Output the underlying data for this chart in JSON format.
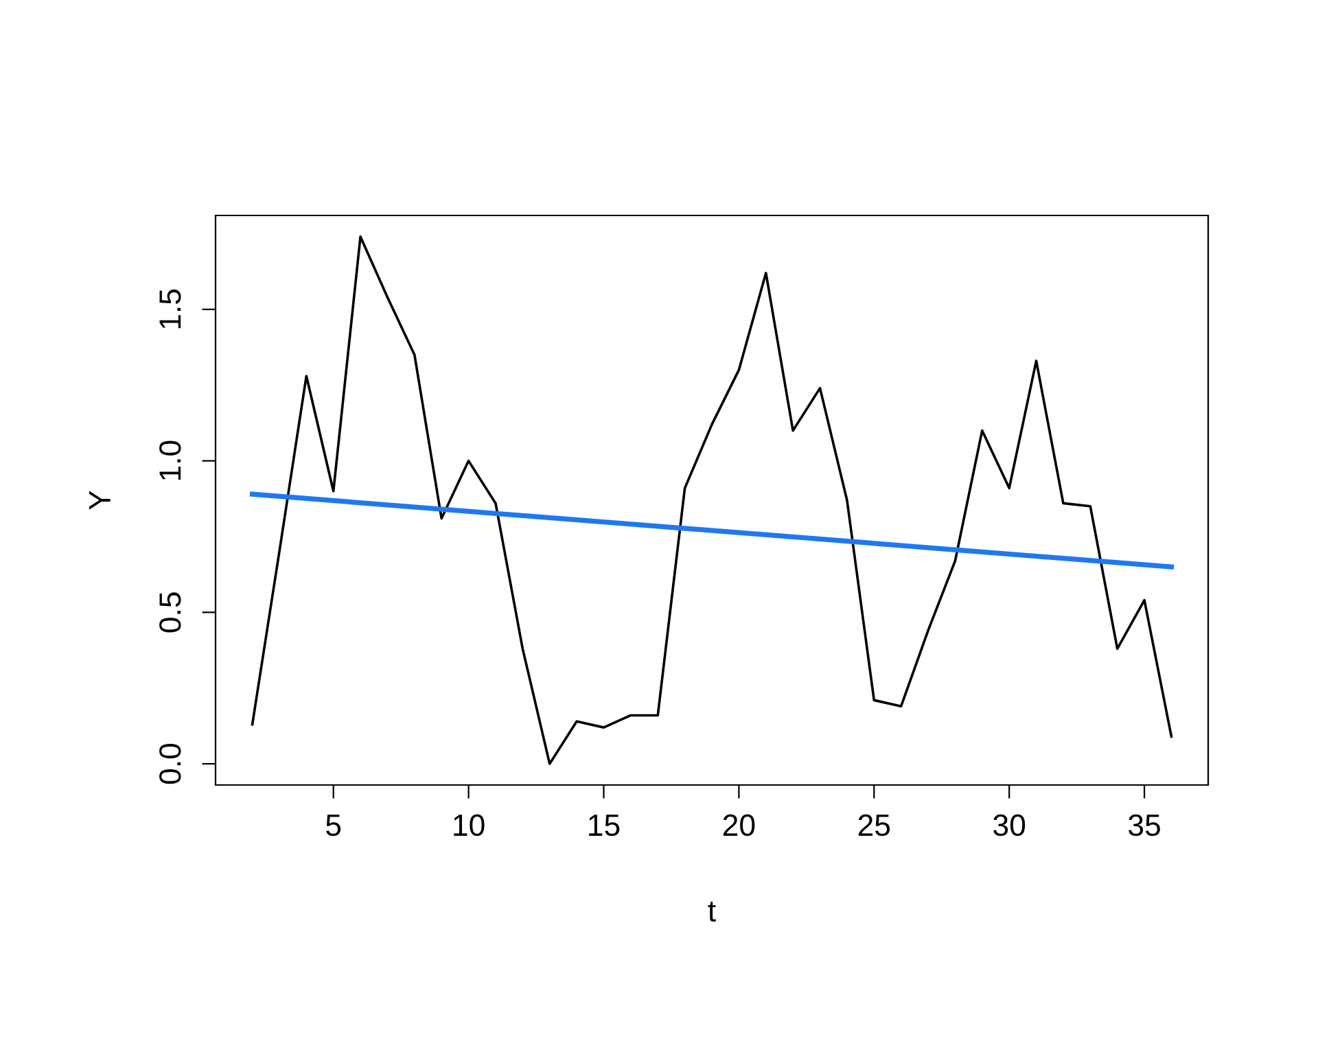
{
  "chart_data": {
    "type": "line",
    "xlabel": "t",
    "ylabel": "Y",
    "series": [
      {
        "color": "#000000",
        "x": [
          2,
          3,
          4,
          5,
          6,
          7,
          8,
          9,
          10,
          11,
          12,
          13,
          14,
          15,
          16,
          17,
          18,
          19,
          20,
          21,
          22,
          23,
          24,
          25,
          26,
          27,
          28,
          29,
          30,
          31,
          32,
          33,
          34,
          35,
          36
        ],
        "values": [
          0.13,
          0.7,
          1.28,
          0.9,
          1.74,
          1.54,
          1.35,
          0.81,
          1.0,
          0.86,
          0.38,
          0.0,
          0.14,
          0.12,
          0.16,
          0.16,
          0.91,
          1.12,
          1.3,
          1.62,
          1.1,
          1.24,
          0.87,
          0.21,
          0.19,
          0.44,
          0.67,
          1.1,
          0.91,
          1.33,
          0.86,
          0.85,
          0.38,
          0.54,
          0.09
        ]
      },
      {
        "color": "#1f78f0",
        "x": [
          2,
          36
        ],
        "values": [
          0.89,
          0.65
        ]
      }
    ],
    "xlim": [
      0.64,
      37.36
    ],
    "ylim": [
      -0.07,
      1.81
    ],
    "xticks": [
      5,
      10,
      15,
      20,
      25,
      30,
      35
    ],
    "yticks": [
      {
        "value": 0,
        "label": "0.0"
      },
      0.5,
      {
        "value": 1,
        "label": "1.0"
      },
      1.5
    ],
    "grid": false,
    "legend": false
  }
}
